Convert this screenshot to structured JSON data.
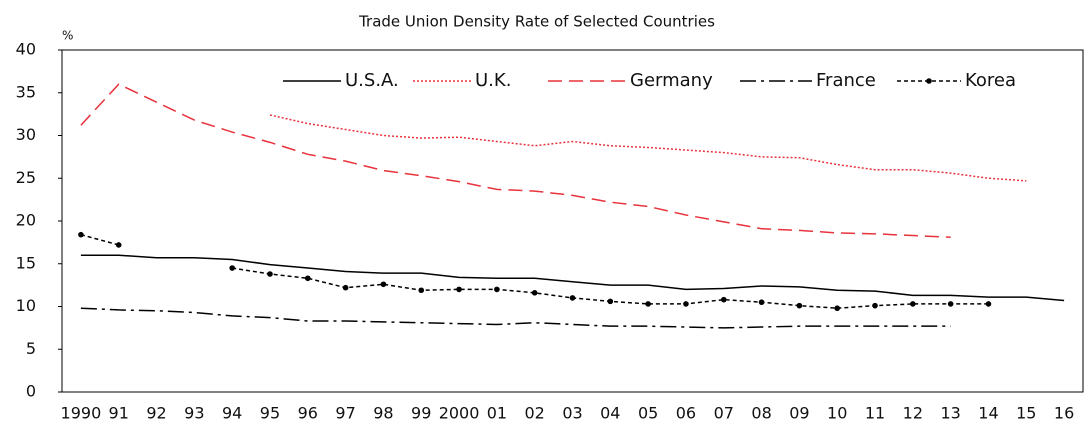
{
  "chart_data": {
    "type": "line",
    "title": "Trade Union Density Rate of Selected Countries",
    "y_unit": "%",
    "categories": [
      "1990",
      "91",
      "92",
      "93",
      "94",
      "95",
      "96",
      "97",
      "98",
      "99",
      "2000",
      "01",
      "02",
      "03",
      "04",
      "05",
      "06",
      "07",
      "08",
      "09",
      "10",
      "11",
      "12",
      "13",
      "14",
      "15",
      "16"
    ],
    "ylim": [
      0,
      40
    ],
    "yticks": [
      0,
      5,
      10,
      15,
      20,
      25,
      30,
      35,
      40
    ],
    "grid": false,
    "legend": "top-right",
    "series": [
      {
        "name": "U.S.A.",
        "color": "#000000",
        "style": "solid",
        "marker": false,
        "values": [
          16.0,
          16.0,
          15.7,
          15.7,
          15.5,
          14.9,
          14.5,
          14.1,
          13.9,
          13.9,
          13.4,
          13.3,
          13.3,
          12.9,
          12.5,
          12.5,
          12.0,
          12.1,
          12.4,
          12.3,
          11.9,
          11.8,
          11.3,
          11.3,
          11.1,
          11.1,
          10.7
        ]
      },
      {
        "name": "U.K.",
        "color": "#e8323c",
        "style": "dotted",
        "marker": false,
        "values": [
          null,
          null,
          null,
          null,
          null,
          32.4,
          31.4,
          30.7,
          30.0,
          29.7,
          29.8,
          29.3,
          28.8,
          29.3,
          28.8,
          28.6,
          28.3,
          28.0,
          27.5,
          27.4,
          26.6,
          26.0,
          26.0,
          25.6,
          25.0,
          24.7,
          null
        ]
      },
      {
        "name": "Germany",
        "color": "#e8323c",
        "style": "dashed",
        "marker": false,
        "values": [
          31.2,
          36.0,
          33.9,
          31.8,
          30.4,
          29.2,
          27.8,
          27.0,
          25.9,
          25.3,
          24.6,
          23.7,
          23.5,
          23.0,
          22.2,
          21.7,
          20.7,
          19.9,
          19.1,
          18.9,
          18.6,
          18.5,
          18.3,
          18.1,
          null,
          null,
          null
        ]
      },
      {
        "name": "France",
        "color": "#000000",
        "style": "dashdot",
        "marker": false,
        "values": [
          9.8,
          9.6,
          9.5,
          9.3,
          8.9,
          8.7,
          8.3,
          8.3,
          8.2,
          8.1,
          8.0,
          7.9,
          8.1,
          7.9,
          7.7,
          7.7,
          7.6,
          7.5,
          7.6,
          7.7,
          7.7,
          7.7,
          7.7,
          7.7,
          null,
          null,
          null
        ]
      },
      {
        "name": "Korea",
        "color": "#000000",
        "style": "shortdash",
        "marker": true,
        "values": [
          18.4,
          17.2,
          null,
          null,
          14.5,
          13.8,
          13.3,
          12.2,
          12.6,
          11.9,
          12.0,
          12.0,
          11.6,
          11.0,
          10.6,
          10.3,
          10.3,
          10.8,
          10.5,
          10.1,
          9.8,
          10.1,
          10.3,
          10.3,
          10.3,
          null,
          null
        ]
      }
    ]
  }
}
